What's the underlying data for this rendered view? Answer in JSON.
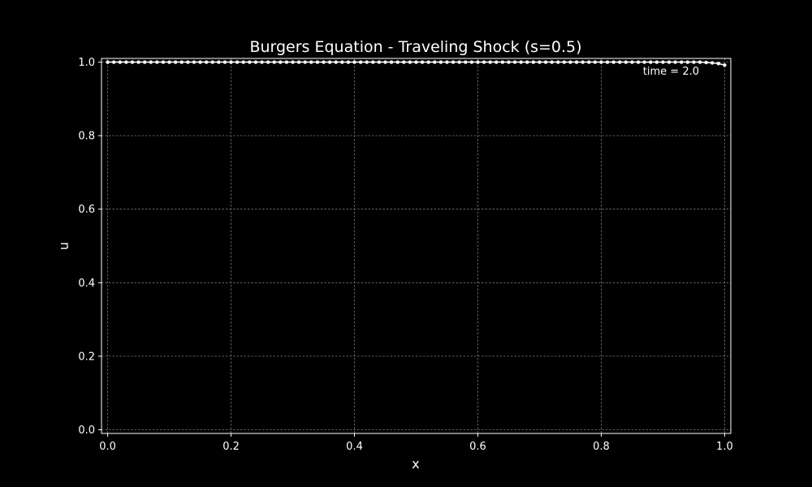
{
  "chart_data": {
    "type": "line",
    "title": "Burgers Equation - Traveling Shock (s=0.5)",
    "xlabel": "x",
    "ylabel": "u",
    "xlim": [
      -0.01,
      1.01
    ],
    "ylim": [
      -0.01,
      1.01
    ],
    "xticks": [
      0.0,
      0.2,
      0.4,
      0.6,
      0.8,
      1.0
    ],
    "yticks": [
      0.0,
      0.2,
      0.4,
      0.6,
      0.8,
      1.0
    ],
    "xtick_labels": [
      "0.0",
      "0.2",
      "0.4",
      "0.6",
      "0.8",
      "1.0"
    ],
    "ytick_labels": [
      "0.0",
      "0.2",
      "0.4",
      "0.6",
      "0.8",
      "1.0"
    ],
    "grid": true,
    "annotation": "time = 2.0",
    "annotation_placement": "top-right",
    "series": [
      {
        "marker": "circle",
        "color": "#ffffff",
        "x": [
          0.0,
          0.01,
          0.02,
          0.03,
          0.04,
          0.05,
          0.06,
          0.07,
          0.08,
          0.09,
          0.1,
          0.11,
          0.12,
          0.13,
          0.14,
          0.15,
          0.16,
          0.17,
          0.18,
          0.19,
          0.2,
          0.21,
          0.22,
          0.23,
          0.24,
          0.25,
          0.26,
          0.27,
          0.28,
          0.29,
          0.3,
          0.31,
          0.32,
          0.33,
          0.34,
          0.35,
          0.36,
          0.37,
          0.38,
          0.39,
          0.4,
          0.41,
          0.42,
          0.43,
          0.44,
          0.45,
          0.46,
          0.47,
          0.48,
          0.49,
          0.5,
          0.51,
          0.52,
          0.53,
          0.54,
          0.55,
          0.56,
          0.57,
          0.58,
          0.59,
          0.6,
          0.61,
          0.62,
          0.63,
          0.64,
          0.65,
          0.66,
          0.67,
          0.68,
          0.69,
          0.7,
          0.71,
          0.72,
          0.73,
          0.74,
          0.75,
          0.76,
          0.77,
          0.78,
          0.79,
          0.8,
          0.81,
          0.82,
          0.83,
          0.84,
          0.85,
          0.86,
          0.87,
          0.88,
          0.89,
          0.9,
          0.91,
          0.92,
          0.93,
          0.94,
          0.95,
          0.96,
          0.97,
          0.98,
          0.99,
          1.0
        ],
        "y": [
          1.0,
          1.0,
          1.0,
          1.0,
          1.0,
          1.0,
          1.0,
          1.0,
          1.0,
          1.0,
          1.0,
          1.0,
          1.0,
          1.0,
          1.0,
          1.0,
          1.0,
          1.0,
          1.0,
          1.0,
          1.0,
          1.0,
          1.0,
          1.0,
          1.0,
          1.0,
          1.0,
          1.0,
          1.0,
          1.0,
          1.0,
          1.0,
          1.0,
          1.0,
          1.0,
          1.0,
          1.0,
          1.0,
          1.0,
          1.0,
          1.0,
          1.0,
          1.0,
          1.0,
          1.0,
          1.0,
          1.0,
          1.0,
          1.0,
          1.0,
          1.0,
          1.0,
          1.0,
          1.0,
          1.0,
          1.0,
          1.0,
          1.0,
          1.0,
          1.0,
          1.0,
          1.0,
          1.0,
          1.0,
          1.0,
          1.0,
          1.0,
          1.0,
          1.0,
          1.0,
          1.0,
          1.0,
          1.0,
          1.0,
          1.0,
          1.0,
          1.0,
          1.0,
          1.0,
          1.0,
          1.0,
          1.0,
          1.0,
          1.0,
          1.0,
          1.0,
          1.0,
          1.0,
          1.0,
          1.0,
          1.0,
          1.0,
          1.0,
          1.0,
          1.0,
          1.0,
          1.0,
          0.999,
          0.998,
          0.996,
          0.992
        ]
      }
    ]
  }
}
